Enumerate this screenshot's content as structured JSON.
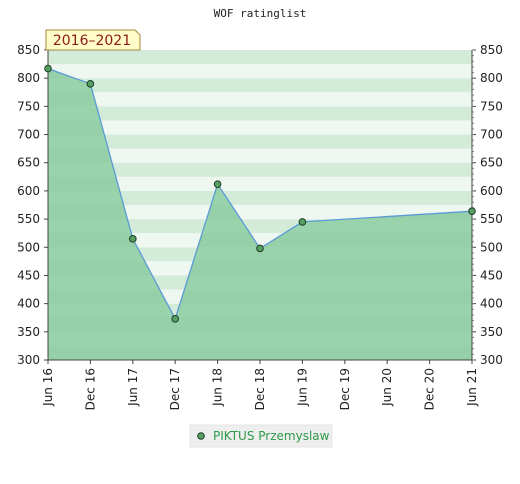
{
  "chart_data": {
    "type": "area",
    "title": "WOF ratinglist",
    "period_label": "2016–2021",
    "x_tick_labels": [
      "Jun 16",
      "Dec 16",
      "Jun 17",
      "Dec 17",
      "Jun 18",
      "Dec 18",
      "Jun 19",
      "Dec 19",
      "Jun 20",
      "Dec 20",
      "Jun 21"
    ],
    "ylim": [
      300,
      850
    ],
    "y_ticks": [
      300,
      350,
      400,
      450,
      500,
      550,
      600,
      650,
      700,
      750,
      800,
      850
    ],
    "series": [
      {
        "name": "PIKTUS Przemyslaw",
        "points": [
          {
            "x": 0,
            "y": 817
          },
          {
            "x": 1,
            "y": 790
          },
          {
            "x": 2,
            "y": 515
          },
          {
            "x": 3,
            "y": 373
          },
          {
            "x": 4,
            "y": 612
          },
          {
            "x": 5,
            "y": 498
          },
          {
            "x": 6,
            "y": 545
          },
          {
            "x": 10,
            "y": 564
          }
        ]
      }
    ],
    "grid": true,
    "legend_position": "bottom-center",
    "colors": {
      "line": "#5b9bd5",
      "marker": "#56a064",
      "fill": "#6abf85",
      "label_bg": "#fffcc7",
      "label_border": "#a08a3c",
      "label_text": "#8b1a1a",
      "legend_text": "#2e9a4a"
    }
  }
}
